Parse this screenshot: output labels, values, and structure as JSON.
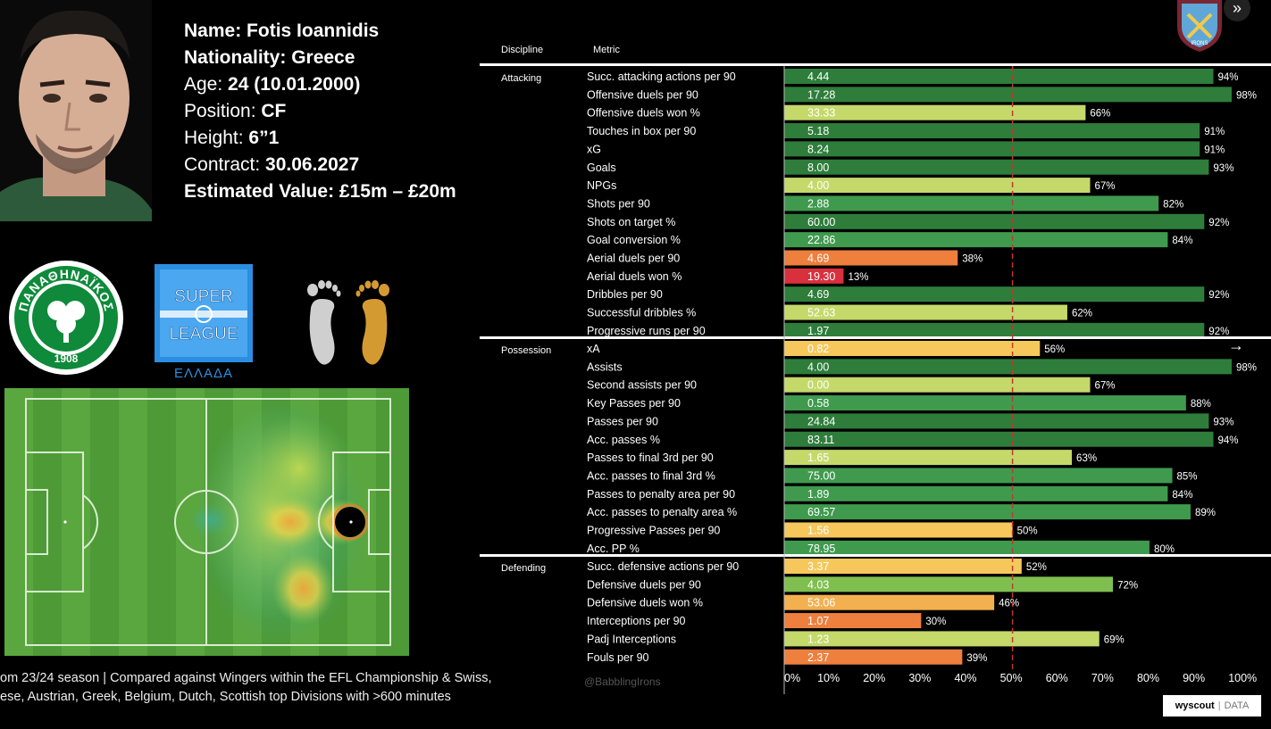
{
  "player": {
    "name_label": "Name:",
    "name": "Fotis Ioannidis",
    "nationality_label": "Nationality:",
    "nationality": "Greece",
    "age_label": "Age:",
    "age": "24 (10.01.2000)",
    "position_label": "Position:",
    "position": "CF",
    "height_label": "Height:",
    "height": "6”1",
    "contract_label": "Contract:",
    "contract": "30.06.2027",
    "value_label": "Estimated Value:",
    "value": "£15m – £20m"
  },
  "logos": {
    "club_text": "ΠΑΝΑΘΗΝΑΪΚΟΣ",
    "club_year": "1908",
    "league_line1": "SUPER",
    "league_line2": "LEAGUE",
    "league_line3": "ΕΛΛΑΔΑ",
    "badge_text": "IRONS"
  },
  "footnote": {
    "line1": "om 23/24 season | Compared against Wingers within the EFL Championship & Swiss,",
    "line2": "ese, Austrian, Greek, Belgium, Dutch, Scottish top Divisions  with >600 minutes"
  },
  "watermark": "@BabblingIrons",
  "brand": {
    "name": "wyscout",
    "sep": "|",
    "data": "DATA"
  },
  "colors": {
    "p90plus": "#2e7d3b",
    "p80": "#3f9a4e",
    "p70": "#7fbf50",
    "p60": "#c5d86a",
    "p50": "#f6c85b",
    "p40": "#f3b04e",
    "p30": "#ee7f3d",
    "p_low": "#d9303e"
  },
  "chart_data": {
    "type": "bar",
    "orientation": "horizontal",
    "headers": {
      "discipline": "Discipline",
      "metric": "Metric"
    },
    "xlim": [
      0,
      100
    ],
    "x_ticks": [
      "0%",
      "10%",
      "20%",
      "30%",
      "40%",
      "50%",
      "60%",
      "70%",
      "80%",
      "90%",
      "100%"
    ],
    "reference_line": 50,
    "groups": [
      {
        "discipline": "Attacking",
        "rows": [
          {
            "metric": "Succ. attacking actions per 90",
            "value": "4.44",
            "percentile": 94
          },
          {
            "metric": "Offensive duels per 90",
            "value": "17.28",
            "percentile": 98
          },
          {
            "metric": "Offensive duels won %",
            "value": "33.33",
            "percentile": 66
          },
          {
            "metric": "Touches in box per 90",
            "value": "5.18",
            "percentile": 91
          },
          {
            "metric": "xG",
            "value": "8.24",
            "percentile": 91
          },
          {
            "metric": "Goals",
            "value": "8.00",
            "percentile": 93
          },
          {
            "metric": "NPGs",
            "value": "4.00",
            "percentile": 67
          },
          {
            "metric": "Shots per 90",
            "value": "2.88",
            "percentile": 82
          },
          {
            "metric": "Shots on target %",
            "value": "60.00",
            "percentile": 92
          },
          {
            "metric": "Goal conversion %",
            "value": "22.86",
            "percentile": 84
          },
          {
            "metric": "Aerial duels per 90",
            "value": "4.69",
            "percentile": 38
          },
          {
            "metric": "Aerial duels won %",
            "value": "19.30",
            "percentile": 13
          },
          {
            "metric": "Dribbles per 90",
            "value": "4.69",
            "percentile": 92
          },
          {
            "metric": "Successful dribbles %",
            "value": "52.63",
            "percentile": 62
          },
          {
            "metric": "Progressive runs per 90",
            "value": "1.97",
            "percentile": 92
          }
        ]
      },
      {
        "discipline": "Possession",
        "rows": [
          {
            "metric": "xA",
            "value": "0.82",
            "percentile": 56
          },
          {
            "metric": "Assists",
            "value": "4.00",
            "percentile": 98
          },
          {
            "metric": "Second assists per 90",
            "value": "0.00",
            "percentile": 67
          },
          {
            "metric": "Key Passes per 90",
            "value": "0.58",
            "percentile": 88
          },
          {
            "metric": "Passes per 90",
            "value": "24.84",
            "percentile": 93
          },
          {
            "metric": "Acc. passes %",
            "value": "83.11",
            "percentile": 94
          },
          {
            "metric": "Passes to final 3rd per 90",
            "value": "1.65",
            "percentile": 63
          },
          {
            "metric": "Acc. passes to final 3rd %",
            "value": "75.00",
            "percentile": 85
          },
          {
            "metric": "Passes to penalty area per 90",
            "value": "1.89",
            "percentile": 84
          },
          {
            "metric": "Acc. passes to penalty area %",
            "value": "69.57",
            "percentile": 89
          },
          {
            "metric": "Progressive Passes per 90",
            "value": "1.56",
            "percentile": 50
          },
          {
            "metric": "Acc. PP %",
            "value": "78.95",
            "percentile": 80
          }
        ]
      },
      {
        "discipline": "Defending",
        "rows": [
          {
            "metric": "Succ. defensive actions per 90",
            "value": "3.37",
            "percentile": 52
          },
          {
            "metric": "Defensive duels per 90",
            "value": "4.03",
            "percentile": 72
          },
          {
            "metric": "Defensive duels won %",
            "value": "53.06",
            "percentile": 46
          },
          {
            "metric": "Interceptions per 90",
            "value": "1.07",
            "percentile": 30
          },
          {
            "metric": "Padj Interceptions",
            "value": "1.23",
            "percentile": 69
          },
          {
            "metric": "Fouls per 90",
            "value": "2.37",
            "percentile": 39
          }
        ]
      }
    ]
  }
}
